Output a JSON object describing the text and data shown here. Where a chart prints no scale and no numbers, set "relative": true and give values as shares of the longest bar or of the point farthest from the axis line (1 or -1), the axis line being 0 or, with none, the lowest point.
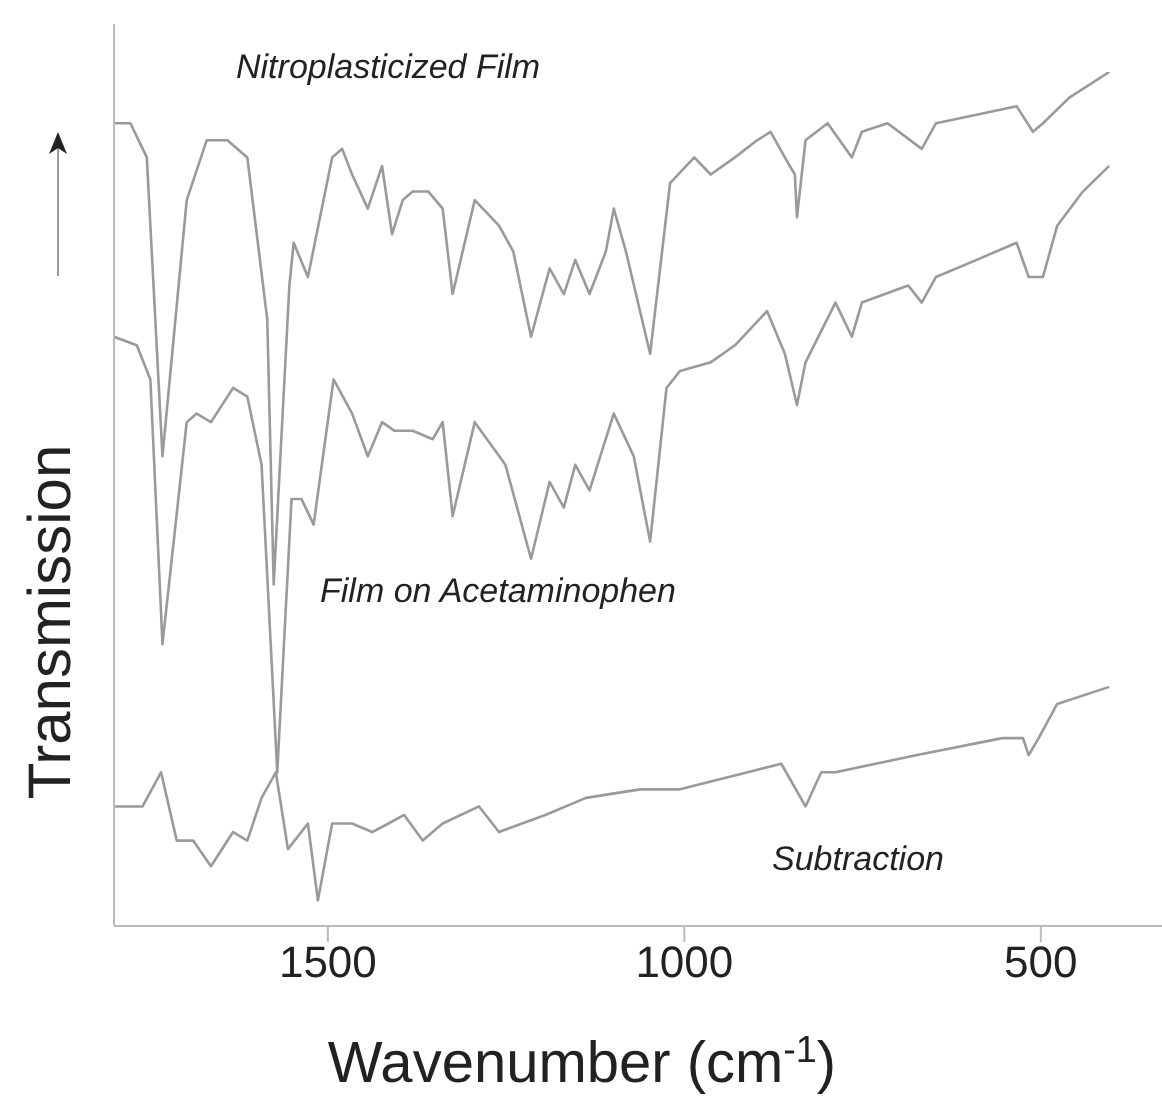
{
  "chart_data": {
    "type": "line",
    "relative": true,
    "xlabel": "Wavenumber (cm$^{-1}$)",
    "ylabel": "Transmission",
    "xlim": [
      1800,
      330
    ],
    "xticks": [
      1500,
      1000,
      500
    ],
    "marker": "none",
    "line_style": "solid",
    "series": [
      {
        "name": "Nitroplasticized Film",
        "color": "#9a9a9a",
        "x": [
          1800,
          1777,
          1754,
          1732,
          1698,
          1670,
          1641,
          1613,
          1585,
          1576,
          1554,
          1548,
          1528,
          1494,
          1480,
          1466,
          1444,
          1424,
          1410,
          1395,
          1381,
          1359,
          1339,
          1325,
          1294,
          1260,
          1240,
          1215,
          1189,
          1169,
          1153,
          1133,
          1110,
          1099,
          1082,
          1048,
          1020,
          986,
          963,
          929,
          898,
          879,
          859,
          845,
          842,
          830,
          799,
          765,
          751,
          715,
          667,
          647,
          590,
          534,
          511,
          497,
          460,
          404
        ],
        "values": [
          0.94,
          0.94,
          0.9,
          0.55,
          0.85,
          0.92,
          0.92,
          0.9,
          0.71,
          0.4,
          0.75,
          0.8,
          0.76,
          0.9,
          0.91,
          0.88,
          0.84,
          0.89,
          0.81,
          0.85,
          0.86,
          0.86,
          0.84,
          0.74,
          0.85,
          0.82,
          0.79,
          0.69,
          0.77,
          0.74,
          0.78,
          0.74,
          0.79,
          0.84,
          0.79,
          0.67,
          0.87,
          0.9,
          0.88,
          0.9,
          0.92,
          0.93,
          0.9,
          0.88,
          0.83,
          0.92,
          0.94,
          0.9,
          0.93,
          0.94,
          0.91,
          0.94,
          0.95,
          0.96,
          0.93,
          0.94,
          0.97,
          1.0
        ]
      },
      {
        "name": "Film on Acetaminophen",
        "color": "#9a9a9a",
        "x": [
          1800,
          1768,
          1749,
          1732,
          1698,
          1684,
          1664,
          1633,
          1613,
          1593,
          1571,
          1551,
          1537,
          1520,
          1492,
          1466,
          1444,
          1424,
          1407,
          1381,
          1353,
          1339,
          1325,
          1294,
          1251,
          1215,
          1189,
          1169,
          1153,
          1133,
          1099,
          1071,
          1048,
          1025,
          1006,
          963,
          929,
          884,
          859,
          842,
          830,
          788,
          765,
          751,
          686,
          667,
          647,
          590,
          534,
          517,
          497,
          477,
          441,
          404
        ],
        "values": [
          0.69,
          0.68,
          0.64,
          0.33,
          0.59,
          0.6,
          0.59,
          0.63,
          0.62,
          0.54,
          0.18,
          0.5,
          0.5,
          0.47,
          0.64,
          0.6,
          0.55,
          0.59,
          0.58,
          0.58,
          0.57,
          0.59,
          0.48,
          0.59,
          0.54,
          0.43,
          0.52,
          0.49,
          0.54,
          0.51,
          0.6,
          0.55,
          0.45,
          0.63,
          0.65,
          0.66,
          0.68,
          0.72,
          0.67,
          0.61,
          0.66,
          0.73,
          0.69,
          0.73,
          0.75,
          0.73,
          0.76,
          0.78,
          0.8,
          0.76,
          0.76,
          0.82,
          0.86,
          0.89
        ]
      },
      {
        "name": "Subtraction",
        "color": "#9a9a9a",
        "x": [
          1800,
          1760,
          1734,
          1712,
          1689,
          1664,
          1633,
          1613,
          1593,
          1573,
          1556,
          1528,
          1514,
          1494,
          1466,
          1438,
          1415,
          1393,
          1367,
          1339,
          1288,
          1260,
          1195,
          1138,
          1062,
          1006,
          864,
          830,
          808,
          788,
          675,
          554,
          525,
          517,
          503,
          477,
          404
        ],
        "values": [
          0.14,
          0.14,
          0.18,
          0.1,
          0.1,
          0.07,
          0.11,
          0.1,
          0.15,
          0.18,
          0.09,
          0.12,
          0.03,
          0.12,
          0.12,
          0.11,
          0.12,
          0.13,
          0.1,
          0.12,
          0.14,
          0.11,
          0.13,
          0.15,
          0.16,
          0.16,
          0.19,
          0.14,
          0.18,
          0.18,
          0.2,
          0.22,
          0.22,
          0.2,
          0.22,
          0.26,
          0.28
        ]
      }
    ]
  }
}
